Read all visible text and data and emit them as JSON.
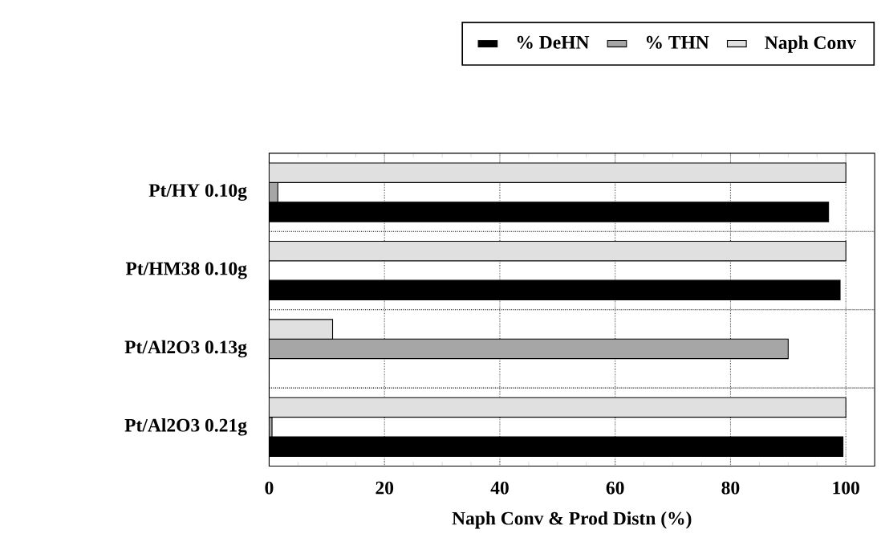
{
  "chart_data": {
    "type": "bar",
    "orientation": "horizontal",
    "categories": [
      "Pt/HY   0.10g",
      "Pt/HM38   0.10g",
      "Pt/Al2O3   0.13g",
      "Pt/Al2O3   0.21g"
    ],
    "series": [
      {
        "name": "% DeHN",
        "color": "#000000",
        "values": [
          97,
          99,
          0,
          99.5
        ]
      },
      {
        "name": "% THN",
        "color": "#a6a6a6",
        "values": [
          1.5,
          0,
          90,
          0.5
        ]
      },
      {
        "name": "Naph  Conv",
        "color": "#e0e0e0",
        "values": [
          100,
          100,
          11,
          100
        ]
      }
    ],
    "xlabel": "Naph Conv & Prod Distn (%)",
    "xlim": [
      0,
      105
    ],
    "xticks": [
      0,
      20,
      40,
      60,
      80,
      100
    ],
    "grid": true,
    "legend": "top"
  }
}
